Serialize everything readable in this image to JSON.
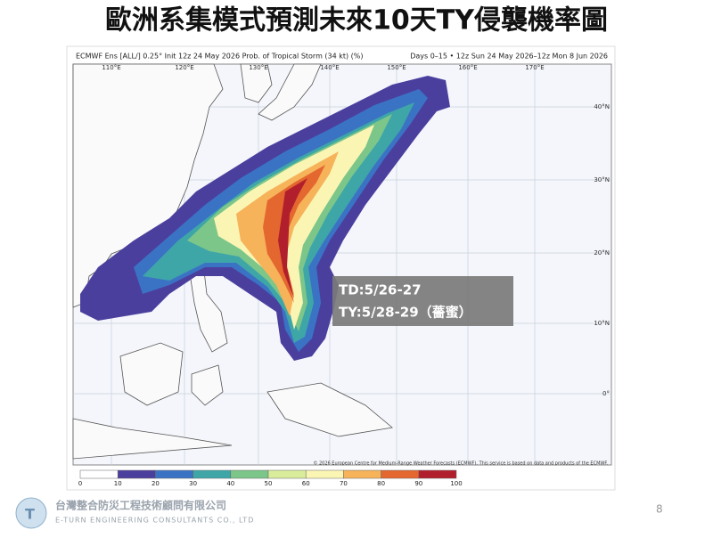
{
  "header": {
    "title": "歐洲系集模式預測未來10天TY侵襲機率圖"
  },
  "map": {
    "header_left": "ECMWF Ens [ALL/] 0.25° Init 12z 24 May 2026 Prob. of Tropical Storm (34 kt) (%)",
    "header_right": "Days 0–15 • 12z Sun 24 May 2026–12z Mon 8 Jun 2026",
    "lon_labels": [
      "110°E",
      "120°E",
      "130°E",
      "140°E",
      "150°E",
      "160°E",
      "170°E"
    ],
    "lat_labels": [
      "40°N",
      "30°N",
      "20°N",
      "10°N",
      "0°"
    ],
    "copyright": "© 2026 European Centre for Medium-Range Weather Forecasts (ECMWF). This service is based on data and products of the ECMWF.",
    "colorbar": {
      "ticks": [
        0,
        10,
        20,
        30,
        40,
        50,
        60,
        70,
        80,
        90,
        100
      ],
      "colors": [
        "#ffffff",
        "#4b3f9e",
        "#3b73c4",
        "#3fa6a8",
        "#7cc68a",
        "#d8ec9c",
        "#fbf5b4",
        "#f6b35a",
        "#e4672f",
        "#b21f2c"
      ]
    },
    "annotation": [
      "TD:5/26-27",
      "TY:5/28-29（薔蜜）"
    ]
  },
  "footer": {
    "company_zh": "台灣整合防災工程技術顧問有限公司",
    "company_en": "E-TURN ENGINEERING CONSULTANTS CO., LTD",
    "page_number": "8"
  }
}
